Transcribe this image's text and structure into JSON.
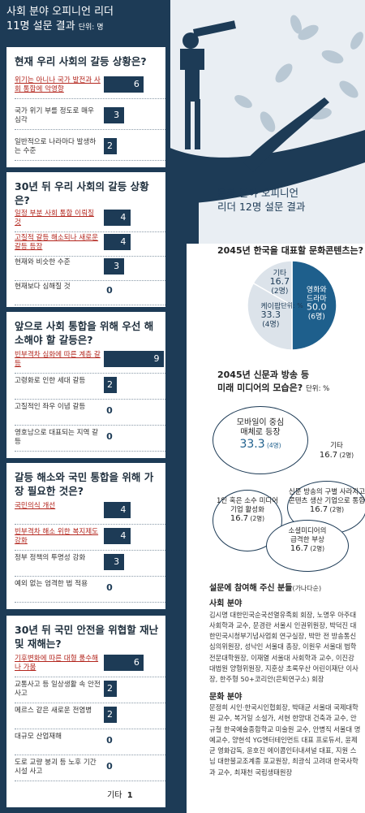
{
  "header": {
    "title_line1": "사회 분야 오피니언 리더",
    "title_line2": "11명 설문 결과",
    "unit": "단위: 명"
  },
  "q1": {
    "title": "현재 우리 사회의 갈등 상황은?",
    "items": [
      {
        "label": "위기는 아니나 국가 발전과 사회 통합에 악영향",
        "value": 6,
        "highlight": true
      },
      {
        "label": "국가 위기 부를 정도로 매우 심각",
        "value": 3,
        "highlight": false
      },
      {
        "label": "일반적으로 나라마다 발생하는 수준",
        "value": 2,
        "highlight": false
      }
    ]
  },
  "q2": {
    "title": "30년 뒤 우리 사회의 갈등 상황은?",
    "items": [
      {
        "label": "일정 부분 사회 통합 이뤄질 것",
        "value": 4,
        "highlight": true
      },
      {
        "label": "고질적 갈등 해소되나 새로운 갈등 등장",
        "value": 4,
        "highlight": true
      },
      {
        "label": "현재와 비슷한 수준",
        "value": 3,
        "highlight": false
      },
      {
        "label": "현재보다 심해질 것",
        "value": 0,
        "highlight": false
      }
    ]
  },
  "q3": {
    "title": "앞으로 사회 통합을 위해 우선 해소해야 할 갈등은?",
    "items": [
      {
        "label": "빈부격차 심화에 따른 계층 갈등",
        "value": 9,
        "highlight": true
      },
      {
        "label": "고령화로 인한 세대 갈등",
        "value": 2,
        "highlight": false
      },
      {
        "label": "고질적인 좌우 이념 갈등",
        "value": 0,
        "highlight": false
      },
      {
        "label": "영호남으로 대표되는 지역 갈등",
        "value": 0,
        "highlight": false
      }
    ]
  },
  "q4": {
    "title": "갈등 해소와 국민 통합을 위해 가장 필요한 것은?",
    "items": [
      {
        "label": "국민의식 개선",
        "value": 4,
        "highlight": true
      },
      {
        "label": "빈부격차 해소 위한 복지제도 강화",
        "value": 4,
        "highlight": true
      },
      {
        "label": "정부 정책의 투명성 강화",
        "value": 3,
        "highlight": false
      },
      {
        "label": "예외 없는 엄격한 법 적용",
        "value": 0,
        "highlight": false
      }
    ]
  },
  "q5": {
    "title": "30년 뒤 국민 안전을 위협할 재난 및 재해는?",
    "items": [
      {
        "label": "기후변화에 따른 대형 풍수해나 가뭄",
        "value": 6,
        "highlight": true
      },
      {
        "label": "교통사고 등 일상생활 속 안전사고",
        "value": 2,
        "highlight": false
      },
      {
        "label": "메르스 같은 새로운 전염병",
        "value": 2,
        "highlight": false
      },
      {
        "label": "대규모 산업재해",
        "value": 0,
        "highlight": false
      },
      {
        "label": "도로 교량 붕괴 등 노후 기간시설 사고",
        "value": 0,
        "highlight": false
      }
    ],
    "other_label": "기타",
    "other_value": 1
  },
  "culture": {
    "title_line1": "문화 분야 오피니언",
    "title_line2": "리더 12명 설문 결과"
  },
  "pie": {
    "title": "2045년 한국을 대표할 문화콘텐츠는?",
    "unit": "단위: %"
  },
  "media": {
    "title_line1": "2045년 신문과 방송 등",
    "title_line2": "미래 미디어의 모습은?",
    "unit": "단위: %"
  },
  "chart_data": [
    {
      "type": "pie",
      "title": "2045년 한국을 대표할 문화콘텐츠는?",
      "unit": "%",
      "slices": [
        {
          "label": "영화와 드라마",
          "value": 50.0,
          "count": "(6명)",
          "color": "#1e5f8c"
        },
        {
          "label": "케이팝",
          "value": 33.3,
          "count": "(4명)",
          "color": "#dce3ea"
        },
        {
          "label": "기타",
          "value": 16.7,
          "count": "(2명)",
          "color": "#dce3ea"
        }
      ]
    },
    {
      "type": "bubble",
      "title": "2045년 신문과 방송 등 미래 미디어의 모습은?",
      "unit": "%",
      "items": [
        {
          "label_line1": "모바일이 중심",
          "label_line2": "매체로 등장",
          "value": "33.3",
          "count": "(4명)"
        },
        {
          "label_line1": "기타",
          "label_line2": "",
          "value": "16.7",
          "count": "(2명)"
        },
        {
          "label_line1": "신문 방송의 구별 사라지고",
          "label_line2": "콘텐츠 생산 기업으로 통합",
          "value": "16.7",
          "count": "(2명)"
        },
        {
          "label_line1": "1인 혹은 소수 미디어",
          "label_line2": "기업 활성화",
          "value": "16.7",
          "count": "(2명)"
        },
        {
          "label_line1": "소셜미디어의",
          "label_line2": "급격한 부상",
          "value": "16.7",
          "count": "(2명)"
        }
      ]
    }
  ],
  "credits": {
    "title": "설문에 참여해 주신 분들",
    "title_note": "(가나다순)",
    "social_head": "사회 분야",
    "social_body": "김시명 대한민국순국선열유족회 회장, 노명우 아주대 사회학과 교수, 문경란 서울시 인권위원장, 박덕진 대한민국시청부기념사업회 연구실장, 박만 전 방송통신심의위원장, 성낙인 서울대 총장, 이원우 서울대 법학전문대학원장, 이재열 서울대 사회학과 교수, 이진강 대법원 양형위원장, 지훈상 초록우산 어린이재단 이사장, 한주형 50+코리안(은퇴연구소) 회장",
    "culture_head": "문화 분야",
    "culture_body": "문정희 시인·한국시인협회장, 박태균 서울대 국제대학원 교수, 복거일 소설가, 서현 한양대 건축과 교수, 안규철 한국예술종합학교 미술원 교수, 안병직 서울대 명예교수, 양현석 YG엔터테인먼트 대표 프로듀서, 윤제균 영화감독, 윤호진 에이콤인터내셔널 대표, 지원 스님 대한불교조계종 포교원장, 최광식 고려대 한국사학과 교수, 최재천 국립생태원장"
  }
}
